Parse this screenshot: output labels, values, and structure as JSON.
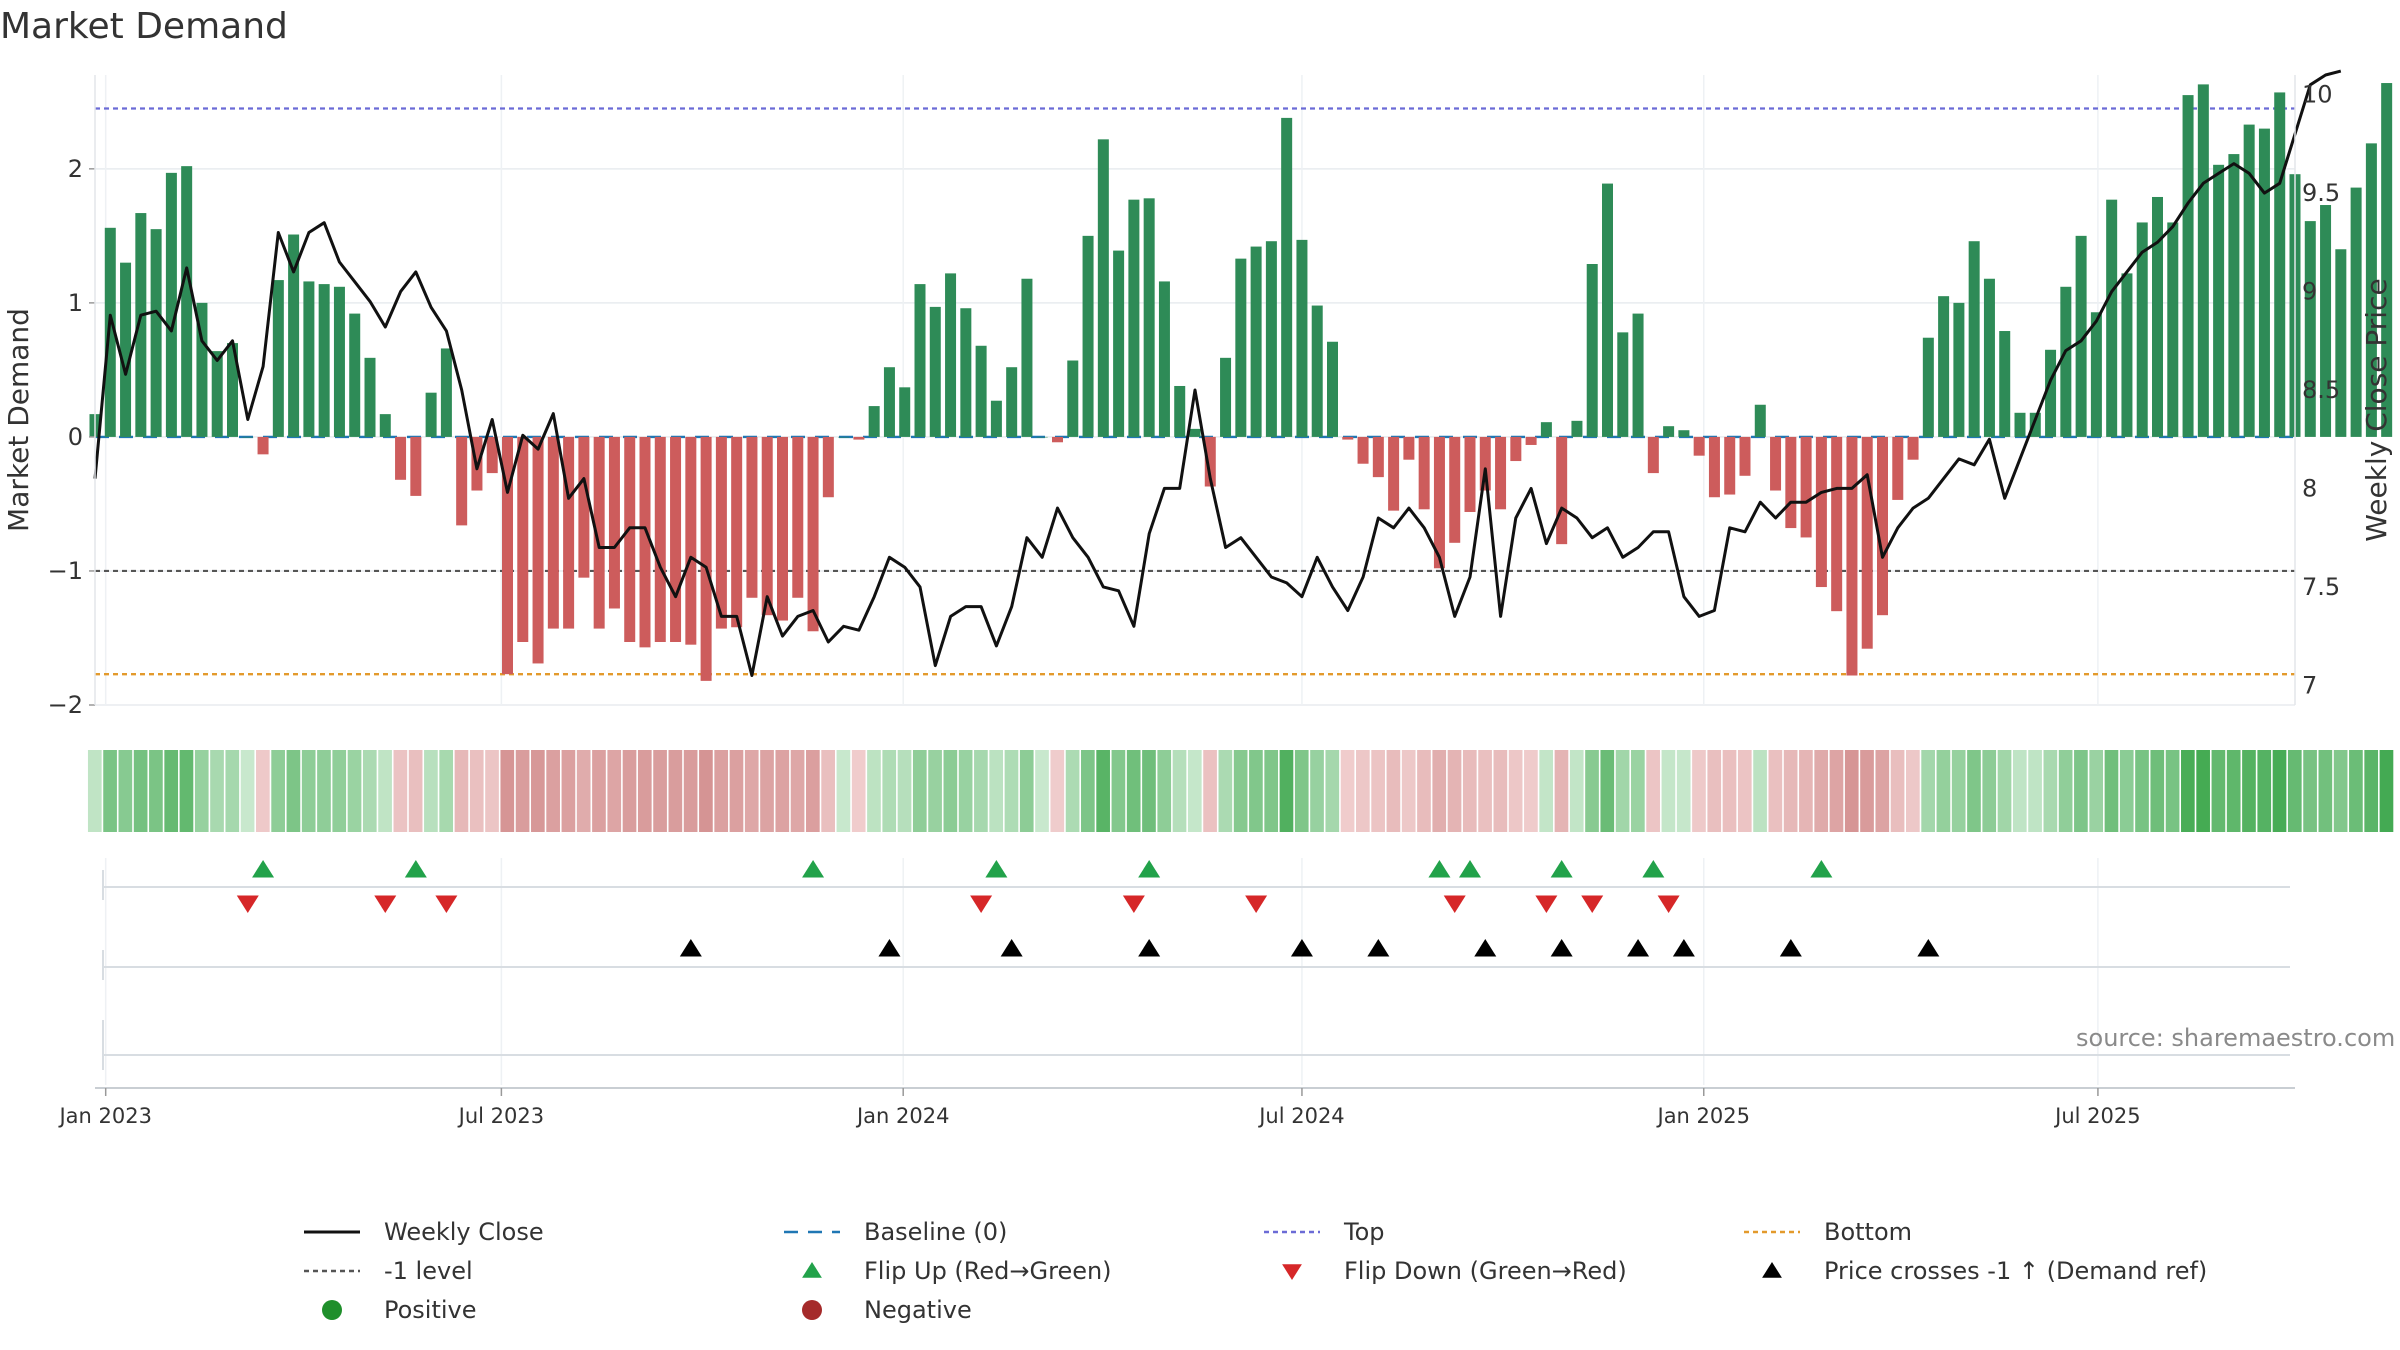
{
  "title": "Market Demand",
  "source_note": "source: sharemaestro.com",
  "colors": {
    "positive_bar": "#2e8b57",
    "negative_bar": "#cd5c5c",
    "price_line": "#111111",
    "baseline": "#1f77b4",
    "top_line": "#6b6bd6",
    "bottom_line": "#e39a2c",
    "minus1_line": "#555555",
    "flip_up": "#22a24a",
    "flip_down": "#d62728",
    "cross_marker": "#000000",
    "positive_dot": "#1f8f2b",
    "negative_dot": "#a52a2a"
  },
  "legend": [
    {
      "label": "Weekly Close",
      "kind": "line-solid"
    },
    {
      "label": "Baseline (0)",
      "kind": "line-dash"
    },
    {
      "label": "Top",
      "kind": "line-dot-blue"
    },
    {
      "label": "Bottom",
      "kind": "line-dot-orange"
    },
    {
      "label": "-1 level",
      "kind": "line-dot-gray"
    },
    {
      "label": "Flip Up (Red→Green)",
      "kind": "tri-up-green"
    },
    {
      "label": "Flip Down (Green→Red)",
      "kind": "tri-down-red"
    },
    {
      "label": "Price crosses -1 ↑ (Demand ref)",
      "kind": "tri-up-black"
    },
    {
      "label": "Positive",
      "kind": "dot-green"
    },
    {
      "label": "Negative",
      "kind": "dot-red"
    }
  ],
  "chart_data": {
    "type": "bar+line",
    "title": "Market Demand",
    "ylabel_left": "Market Demand",
    "ylabel_right": "Weekly Close Price",
    "ylim_left": [
      -2.0,
      2.7
    ],
    "yticks_left": [
      {
        "value": -2,
        "label": "−2"
      },
      {
        "value": -1,
        "label": "−1"
      },
      {
        "value": 0,
        "label": "0"
      },
      {
        "value": 1,
        "label": "1"
      },
      {
        "value": 2,
        "label": "2"
      }
    ],
    "ylim_right": [
      6.9,
      10.1
    ],
    "yticks_right": [
      {
        "value": 7,
        "label": "7"
      },
      {
        "value": 7.5,
        "label": "7.5"
      },
      {
        "value": 8,
        "label": "8"
      },
      {
        "value": 8.5,
        "label": "8.5"
      },
      {
        "value": 9,
        "label": "9"
      },
      {
        "value": 9.5,
        "label": "9.5"
      },
      {
        "value": 10,
        "label": "10"
      }
    ],
    "x_range_weeks": [
      0,
      144
    ],
    "x_ticks": [
      {
        "week": 0.7,
        "label": "Jan 2023"
      },
      {
        "week": 26.6,
        "label": "Jul 2023"
      },
      {
        "week": 52.9,
        "label": "Jan 2024"
      },
      {
        "week": 79.0,
        "label": "Jul 2024"
      },
      {
        "week": 105.3,
        "label": "Jan 2025"
      },
      {
        "week": 131.1,
        "label": "Jul 2025"
      }
    ],
    "reference_levels": {
      "top": 2.45,
      "bottom": -1.77,
      "minus_one": -1.0,
      "baseline": 0
    },
    "demand_weekly": [
      0.17,
      1.56,
      1.3,
      1.67,
      1.55,
      1.97,
      2.02,
      1.0,
      0.64,
      0.7,
      0.0,
      -0.13,
      1.17,
      1.51,
      1.16,
      1.14,
      1.12,
      0.92,
      0.59,
      0.17,
      -0.32,
      -0.44,
      0.33,
      0.66,
      -0.66,
      -0.4,
      -0.27,
      -1.77,
      -1.53,
      -1.69,
      -1.43,
      -1.43,
      -1.05,
      -1.43,
      -1.28,
      -1.53,
      -1.57,
      -1.53,
      -1.53,
      -1.55,
      -1.82,
      -1.43,
      -1.42,
      -1.2,
      -1.33,
      -1.37,
      -1.2,
      -1.45,
      -0.45,
      0.0,
      -0.02,
      0.23,
      0.52,
      0.37,
      1.14,
      0.97,
      1.22,
      0.96,
      0.68,
      0.27,
      0.52,
      1.18,
      0.0,
      -0.04,
      0.57,
      1.5,
      2.22,
      1.39,
      1.77,
      1.78,
      1.16,
      0.38,
      0.06,
      -0.37,
      0.59,
      1.33,
      1.42,
      1.46,
      2.38,
      1.47,
      0.98,
      0.71,
      -0.02,
      -0.2,
      -0.3,
      -0.55,
      -0.17,
      -0.54,
      -0.98,
      -0.79,
      -0.56,
      -0.4,
      -0.54,
      -0.18,
      -0.06,
      0.11,
      -0.8,
      0.12,
      1.29,
      1.89,
      0.78,
      0.92,
      -0.27,
      0.08,
      0.05,
      -0.14,
      -0.45,
      -0.43,
      -0.29,
      0.24,
      -0.4,
      -0.68,
      -0.75,
      -1.12,
      -1.3,
      -1.78,
      -1.58,
      -1.33,
      -0.47,
      -0.17,
      0.74,
      1.05,
      1.0,
      1.46,
      1.18,
      0.79,
      0.18,
      0.18,
      0.65,
      1.12,
      1.5,
      0.93,
      1.77,
      1.22,
      1.6,
      1.79,
      1.6,
      2.55,
      2.63,
      2.03,
      2.11,
      2.33,
      2.3,
      2.57,
      1.96,
      1.61,
      1.73,
      1.4,
      1.86,
      2.19,
      2.64
    ],
    "weekly_close": [
      8.05,
      8.88,
      8.58,
      8.88,
      8.9,
      8.8,
      9.12,
      8.75,
      8.65,
      8.75,
      8.35,
      8.62,
      9.3,
      9.1,
      9.3,
      9.35,
      9.15,
      9.05,
      8.95,
      8.82,
      9.0,
      9.1,
      8.92,
      8.8,
      8.5,
      8.1,
      8.35,
      7.98,
      8.27,
      8.2,
      8.38,
      7.95,
      8.05,
      7.7,
      7.7,
      7.8,
      7.8,
      7.6,
      7.45,
      7.65,
      7.6,
      7.35,
      7.35,
      7.05,
      7.45,
      7.25,
      7.35,
      7.38,
      7.22,
      7.3,
      7.28,
      7.45,
      7.65,
      7.6,
      7.5,
      7.1,
      7.35,
      7.4,
      7.4,
      7.2,
      7.4,
      7.75,
      7.65,
      7.9,
      7.75,
      7.65,
      7.5,
      7.48,
      7.3,
      7.77,
      8.0,
      8.0,
      8.5,
      8.05,
      7.7,
      7.75,
      7.65,
      7.55,
      7.52,
      7.45,
      7.65,
      7.5,
      7.38,
      7.55,
      7.85,
      7.8,
      7.9,
      7.8,
      7.65,
      7.35,
      7.55,
      8.1,
      7.35,
      7.85,
      8.0,
      7.72,
      7.9,
      7.85,
      7.75,
      7.8,
      7.65,
      7.7,
      7.78,
      7.78,
      7.45,
      7.35,
      7.38,
      7.8,
      7.78,
      7.93,
      7.85,
      7.93,
      7.93,
      7.98,
      8.0,
      8.0,
      8.07,
      7.65,
      7.8,
      7.9,
      7.95,
      8.05,
      8.15,
      8.12,
      8.25,
      7.95,
      8.15,
      8.35,
      8.55,
      8.7,
      8.75,
      8.85,
      9.0,
      9.1,
      9.2,
      9.25,
      9.33,
      9.45,
      9.55,
      9.6,
      9.65,
      9.6,
      9.5,
      9.55,
      9.8,
      10.05,
      10.1,
      10.12
    ],
    "flip_up_weeks": [
      11,
      21,
      47,
      59,
      69,
      88,
      90,
      96,
      102,
      113
    ],
    "flip_down_weeks": [
      10,
      19,
      23,
      58,
      68,
      76,
      89,
      95,
      98,
      103
    ],
    "price_cross_weeks": [
      39,
      52,
      60,
      69,
      79,
      84,
      91,
      96,
      101,
      104,
      111,
      120
    ]
  }
}
